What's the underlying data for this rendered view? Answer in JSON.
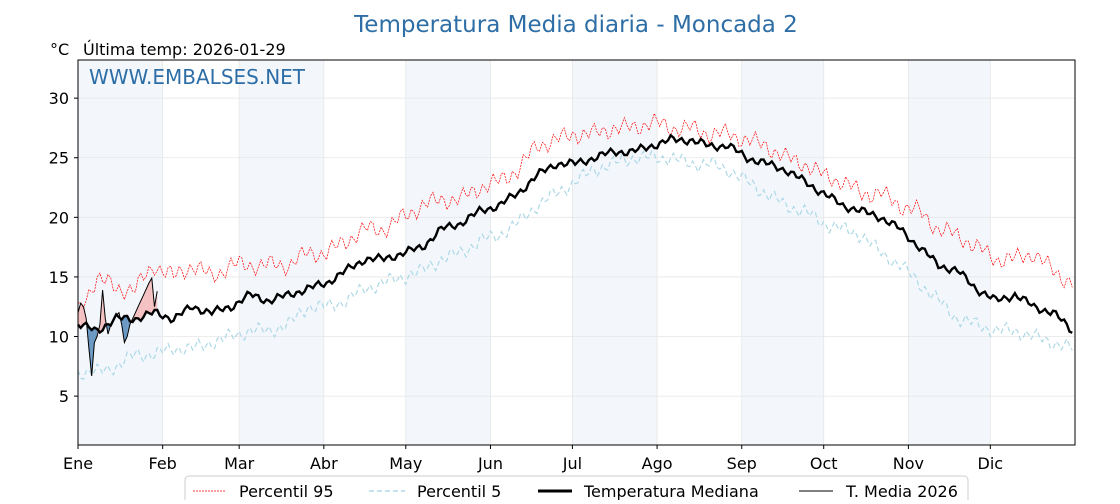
{
  "chart_data": {
    "type": "line",
    "title": "Temperatura Media diaria - Moncada 2",
    "unit_label": "°C",
    "subtitle": "Última temp: 2026-01-29",
    "watermark": "WWW.EMBALSES.NET",
    "ylim": [
      0.9,
      33.2
    ],
    "xlim": [
      0,
      365
    ],
    "yticks": [
      5,
      10,
      15,
      20,
      25,
      30
    ],
    "months": [
      {
        "label": "Ene",
        "day": 0
      },
      {
        "label": "Feb",
        "day": 31
      },
      {
        "label": "Mar",
        "day": 59
      },
      {
        "label": "Abr",
        "day": 90
      },
      {
        "label": "May",
        "day": 120
      },
      {
        "label": "Jun",
        "day": 151
      },
      {
        "label": "Jul",
        "day": 181
      },
      {
        "label": "Ago",
        "day": 212
      },
      {
        "label": "Sep",
        "day": 243
      },
      {
        "label": "Oct",
        "day": 273
      },
      {
        "label": "Nov",
        "day": 304
      },
      {
        "label": "Dic",
        "day": 334
      }
    ],
    "sample_step_days": 7,
    "series": [
      {
        "name": "Percentil 95",
        "color": "#ff0000",
        "values": [
          12,
          15,
          14,
          14,
          16,
          15,
          16,
          15,
          16,
          16,
          16,
          16,
          17,
          17,
          18,
          19,
          19,
          20,
          21,
          21.5,
          21.5,
          22.5,
          23,
          24,
          26,
          26.5,
          27,
          27,
          27.5,
          27.5,
          28,
          27.5,
          27.5,
          27,
          27,
          26.5,
          26,
          25,
          24.5,
          23.5,
          23,
          22,
          22,
          21,
          20.5,
          19,
          18.5,
          17.5,
          16.5,
          16.5,
          17,
          15.5,
          14.5
        ]
      },
      {
        "name": "Percentil 5",
        "color": "#add8e6",
        "values": [
          7,
          7,
          7.5,
          8.5,
          8.5,
          9,
          9,
          9.5,
          10,
          10.5,
          10.5,
          11,
          12.5,
          12.5,
          13,
          14,
          14.5,
          15,
          15.5,
          16.5,
          17,
          18,
          18.5,
          19.5,
          21,
          22,
          23,
          24,
          24.5,
          25,
          25,
          25,
          24.5,
          24.5,
          24,
          23,
          22,
          21,
          20.5,
          19.5,
          19,
          18.5,
          17,
          16,
          14.5,
          13,
          11.5,
          11,
          10.5,
          10.5,
          10,
          9.5,
          9
        ]
      },
      {
        "name": "Temperatura Mediana",
        "color": "#000000",
        "values": [
          11,
          10.5,
          11.5,
          11.5,
          12,
          11.5,
          12.5,
          12,
          12.5,
          13.5,
          13,
          13.5,
          14,
          14.5,
          15.5,
          16.5,
          16.5,
          17,
          17.5,
          19,
          19.5,
          20.5,
          21,
          22,
          23.5,
          24.5,
          24.5,
          25,
          25.5,
          25.5,
          26,
          26.5,
          26.5,
          26,
          26,
          25,
          24.5,
          24,
          23,
          22,
          21,
          20.5,
          20,
          19,
          17.5,
          16,
          15.5,
          14,
          13,
          13.5,
          12.5,
          12,
          10.5
        ]
      },
      {
        "name": "T. Media 2026",
        "color": "#000000",
        "daily_values": [
          12.0,
          12.8,
          12.5,
          11.5,
          9.0,
          6.7,
          9.5,
          10.0,
          11.0,
          13.9,
          11.5,
          10.2,
          11.0,
          11.5,
          11.8,
          12.0,
          11.0,
          9.5,
          10.0,
          11.0,
          11.5,
          12.0,
          12.5,
          13.0,
          13.5,
          14.0,
          14.5,
          14.9,
          12.5,
          13.8
        ]
      }
    ],
    "fill_colors": {
      "above": "#f4b6b6",
      "below": "#4f86b8"
    },
    "legend_position": "bottom-center"
  }
}
